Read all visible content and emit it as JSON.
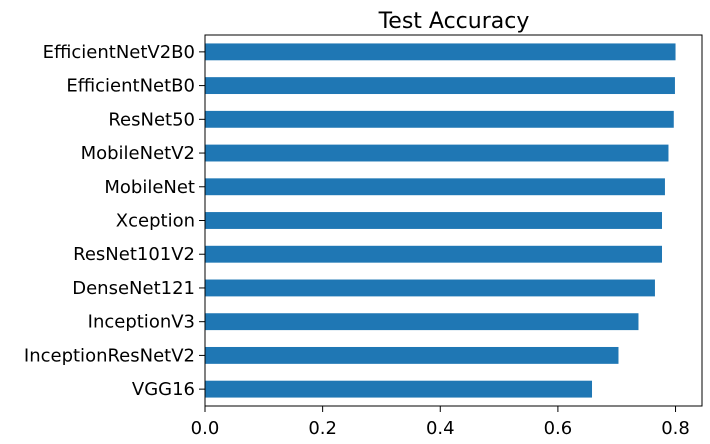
{
  "chart_data": {
    "type": "bar",
    "orientation": "horizontal",
    "title": "Test Accuracy",
    "categories": [
      "EfficientNetV2B0",
      "EfficientNetB0",
      "ResNet50",
      "MobileNetV2",
      "MobileNet",
      "Xception",
      "ResNet101V2",
      "DenseNet121",
      "InceptionV3",
      "InceptionResNetV2",
      "VGG16"
    ],
    "values": [
      0.8,
      0.799,
      0.797,
      0.788,
      0.782,
      0.777,
      0.777,
      0.765,
      0.737,
      0.703,
      0.658
    ],
    "xlim": [
      0,
      0.845
    ],
    "xticks": [
      0.0,
      0.2,
      0.4,
      0.6,
      0.8
    ],
    "xtick_labels": [
      "0.0",
      "0.2",
      "0.4",
      "0.6",
      "0.8"
    ],
    "bar_color": "#1f77b4",
    "grid": false,
    "legend": false
  }
}
